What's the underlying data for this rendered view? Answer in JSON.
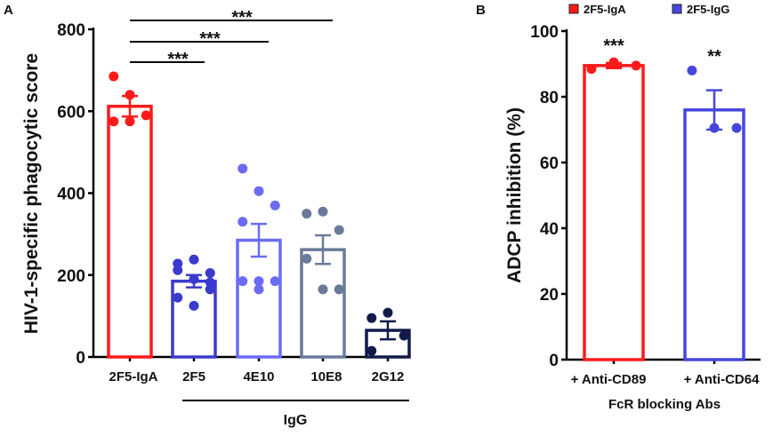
{
  "chart_data": [
    {
      "panel_label": "A",
      "type": "bar",
      "ylabel": "HIV-1-specific phagocytic score",
      "ylim": [
        0,
        800
      ],
      "yticks": [
        "0",
        "200",
        "400",
        "600",
        "800"
      ],
      "categories": [
        "2F5-IgA",
        "2F5",
        "4E10",
        "10E8",
        "2G12"
      ],
      "group_label": "IgG",
      "colors": [
        "#ff1a1a",
        "#3a3acc",
        "#6b6bf5",
        "#6a7a9a",
        "#121a4a"
      ],
      "values": [
        612,
        185,
        285,
        262,
        65
      ],
      "sem": [
        25,
        15,
        40,
        35,
        22
      ],
      "points": [
        [
          685,
          640,
          590,
          575,
          575
        ],
        [
          228,
          238,
          205,
          212,
          190,
          165,
          145,
          125,
          182
        ],
        [
          460,
          405,
          370,
          330,
          185,
          185,
          185,
          165
        ],
        [
          350,
          355,
          310,
          240,
          165,
          165
        ],
        [
          95,
          108,
          52,
          15
        ]
      ],
      "significance": [
        {
          "from": "2F5-IgA",
          "to": "2F5",
          "label": "***"
        },
        {
          "from": "2F5-IgA",
          "to": "4E10",
          "label": "***"
        },
        {
          "from": "2F5-IgA",
          "to": "10E8",
          "label": "***"
        }
      ],
      "grid": false
    },
    {
      "panel_label": "B",
      "type": "bar",
      "ylabel": "ADCP inhibition (%)",
      "xlabel": "FcR blocking Abs",
      "ylim": [
        0,
        100
      ],
      "yticks": [
        "0",
        "20",
        "40",
        "60",
        "80",
        "100"
      ],
      "categories": [
        "+ Anti-CD89",
        "+ Anti-CD64"
      ],
      "legend": [
        {
          "name": "2F5-IgA",
          "color": "#ff1a1a"
        },
        {
          "name": "2F5-IgG",
          "color": "#4646dd"
        }
      ],
      "legend_placement": "top",
      "colors": [
        "#ff1a1a",
        "#4646dd"
      ],
      "values": [
        89.5,
        76
      ],
      "sem": [
        0.8,
        6
      ],
      "points": [
        [
          88.5,
          90.5,
          89.5
        ],
        [
          88,
          70.5,
          70.5
        ]
      ],
      "annotations": [
        "***",
        "**"
      ],
      "grid": false
    }
  ]
}
